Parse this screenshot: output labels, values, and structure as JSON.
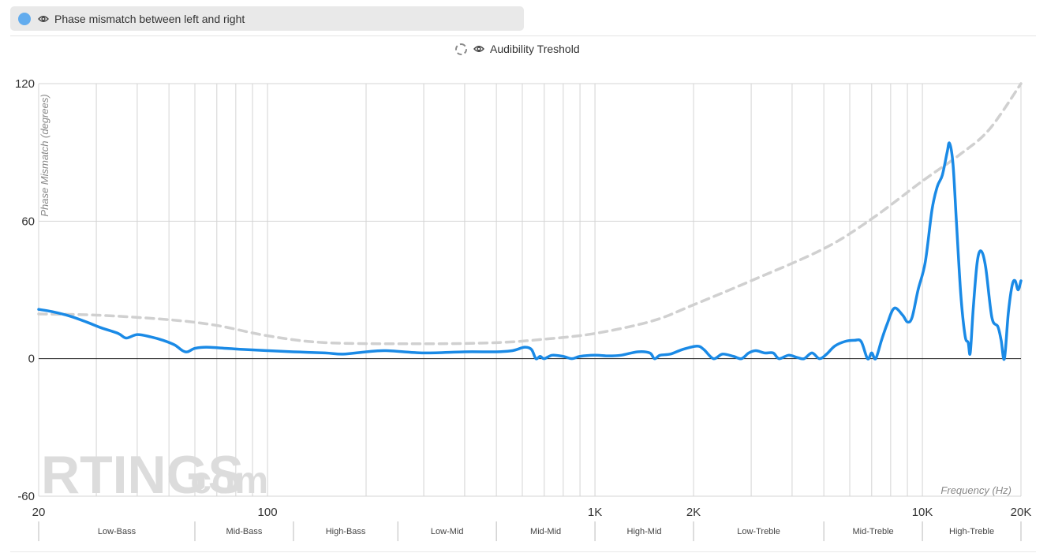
{
  "legend": {
    "series_label": "Phase mismatch between left and right",
    "series_color": "#1a8ae6",
    "series_dot_color": "#62acee",
    "series_icon": "eye-icon",
    "threshold_label": "Audibility Treshold",
    "threshold_icon": "eye-icon",
    "threshold_color": "#d0d0d0"
  },
  "watermark": {
    "brand": "RTINGS",
    "suffix": ".com"
  },
  "chart_data": {
    "type": "line",
    "x_scale": "log",
    "xlabel": "Frequency (Hz)",
    "ylabel": "Phase Mismatch (degrees)",
    "xlim": [
      20,
      20000
    ],
    "ylim": [
      -60,
      120
    ],
    "grid": true,
    "y_ticks": [
      "120",
      "60",
      "0",
      "-60"
    ],
    "y_tick_values": [
      120,
      60,
      0,
      -60
    ],
    "x_ticks": [
      {
        "label": "20",
        "value": 20
      },
      {
        "label": "100",
        "value": 100
      },
      {
        "label": "1K",
        "value": 1000
      },
      {
        "label": "2K",
        "value": 2000
      },
      {
        "label": "10K",
        "value": 10000
      },
      {
        "label": "20K",
        "value": 20000
      }
    ],
    "x_gridlines": [
      20,
      30,
      40,
      50,
      60,
      70,
      80,
      90,
      100,
      200,
      300,
      400,
      500,
      600,
      700,
      800,
      900,
      1000,
      2000,
      3000,
      4000,
      5000,
      6000,
      7000,
      8000,
      9000,
      10000,
      20000
    ],
    "bands": [
      {
        "label": "Low-Bass",
        "from": 20,
        "to": 60
      },
      {
        "label": "Mid-Bass",
        "from": 60,
        "to": 120
      },
      {
        "label": "High-Bass",
        "from": 120,
        "to": 250
      },
      {
        "label": "Low-Mid",
        "from": 250,
        "to": 500
      },
      {
        "label": "Mid-Mid",
        "from": 500,
        "to": 1000
      },
      {
        "label": "High-Mid",
        "from": 1000,
        "to": 2000
      },
      {
        "label": "Low-Treble",
        "from": 2000,
        "to": 5000
      },
      {
        "label": "Mid-Treble",
        "from": 5000,
        "to": 10000
      },
      {
        "label": "High-Treble",
        "from": 10000,
        "to": 20000
      }
    ],
    "series": [
      {
        "name": "Phase mismatch between left and right",
        "color": "#1a8ae6",
        "points": [
          [
            20,
            21.5
          ],
          [
            22,
            20.5
          ],
          [
            25,
            18.5
          ],
          [
            28,
            16
          ],
          [
            31,
            13.5
          ],
          [
            35,
            11
          ],
          [
            37,
            9
          ],
          [
            40,
            10.5
          ],
          [
            44,
            9.5
          ],
          [
            48,
            8
          ],
          [
            52,
            6
          ],
          [
            55,
            3.5
          ],
          [
            57,
            3
          ],
          [
            60,
            4.5
          ],
          [
            65,
            5
          ],
          [
            75,
            4.5
          ],
          [
            85,
            4
          ],
          [
            100,
            3.5
          ],
          [
            120,
            3
          ],
          [
            150,
            2.5
          ],
          [
            170,
            2
          ],
          [
            200,
            3
          ],
          [
            230,
            3.5
          ],
          [
            300,
            2.5
          ],
          [
            400,
            3
          ],
          [
            500,
            3
          ],
          [
            560,
            3.5
          ],
          [
            610,
            5
          ],
          [
            640,
            4
          ],
          [
            660,
            0
          ],
          [
            680,
            1
          ],
          [
            700,
            0
          ],
          [
            740,
            1.5
          ],
          [
            800,
            1
          ],
          [
            850,
            0
          ],
          [
            900,
            1
          ],
          [
            1000,
            1.5
          ],
          [
            1100,
            1.2
          ],
          [
            1200,
            1.5
          ],
          [
            1350,
            3
          ],
          [
            1470,
            2.5
          ],
          [
            1520,
            0
          ],
          [
            1580,
            1.5
          ],
          [
            1700,
            2
          ],
          [
            1850,
            4
          ],
          [
            2050,
            5.5
          ],
          [
            2150,
            4
          ],
          [
            2300,
            0
          ],
          [
            2450,
            2
          ],
          [
            2650,
            1
          ],
          [
            2800,
            0
          ],
          [
            2950,
            2.5
          ],
          [
            3100,
            3.5
          ],
          [
            3300,
            2.5
          ],
          [
            3500,
            2.5
          ],
          [
            3650,
            0
          ],
          [
            3900,
            1.5
          ],
          [
            4150,
            0.5
          ],
          [
            4350,
            0
          ],
          [
            4600,
            2.5
          ],
          [
            4850,
            0
          ],
          [
            5100,
            2
          ],
          [
            5400,
            5.5
          ],
          [
            5800,
            7.5
          ],
          [
            6200,
            8
          ],
          [
            6500,
            7.5
          ],
          [
            6800,
            0
          ],
          [
            7000,
            2.5
          ],
          [
            7200,
            0
          ],
          [
            7500,
            8
          ],
          [
            7800,
            15
          ],
          [
            8200,
            22
          ],
          [
            8700,
            19
          ],
          [
            9000,
            16
          ],
          [
            9300,
            18
          ],
          [
            9700,
            30
          ],
          [
            10200,
            42
          ],
          [
            10700,
            65
          ],
          [
            11100,
            75
          ],
          [
            11500,
            80
          ],
          [
            11900,
            90
          ],
          [
            12100,
            94
          ],
          [
            12400,
            85
          ],
          [
            12700,
            60
          ],
          [
            13100,
            28
          ],
          [
            13500,
            10
          ],
          [
            13800,
            7
          ],
          [
            14000,
            2.5
          ],
          [
            14300,
            22
          ],
          [
            14700,
            42
          ],
          [
            15100,
            47
          ],
          [
            15600,
            40
          ],
          [
            16300,
            18
          ],
          [
            17000,
            14
          ],
          [
            17400,
            8
          ],
          [
            17800,
            0
          ],
          [
            18300,
            20
          ],
          [
            18800,
            32
          ],
          [
            19200,
            34
          ],
          [
            19600,
            30
          ],
          [
            20000,
            34
          ]
        ]
      },
      {
        "name": "Audibility Treshold",
        "color": "#d0d0d0",
        "dashed": true,
        "points": [
          [
            20,
            19.5
          ],
          [
            30,
            19
          ],
          [
            50,
            17
          ],
          [
            70,
            14.5
          ],
          [
            100,
            10
          ],
          [
            150,
            7
          ],
          [
            300,
            6.5
          ],
          [
            500,
            7
          ],
          [
            700,
            8.5
          ],
          [
            1000,
            11
          ],
          [
            1500,
            16.5
          ],
          [
            2000,
            23.5
          ],
          [
            3000,
            34
          ],
          [
            5000,
            48
          ],
          [
            7000,
            61
          ],
          [
            10000,
            77.5
          ],
          [
            13000,
            89
          ],
          [
            16000,
            100
          ],
          [
            20000,
            120
          ]
        ]
      }
    ]
  }
}
